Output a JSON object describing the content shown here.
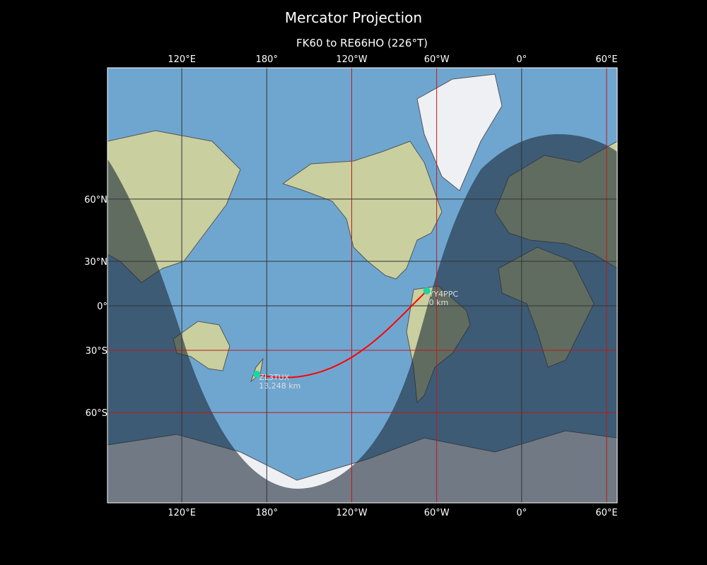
{
  "title": "Mercator Projection",
  "subtitle": "FK60 to RE66HO (226°T)",
  "map": {
    "projection": "mercator",
    "central_longitude_deg": -112.5,
    "lon_ticks": [
      {
        "lon": 120,
        "label": "120°E"
      },
      {
        "lon": 180,
        "label": "180°"
      },
      {
        "lon": -120,
        "label": "120°W"
      },
      {
        "lon": -60,
        "label": "60°W"
      },
      {
        "lon": 0,
        "label": "0°"
      },
      {
        "lon": 60,
        "label": "60°E"
      }
    ],
    "lat_ticks": [
      {
        "lat": 60,
        "label": "60°N"
      },
      {
        "lat": 30,
        "label": "30°N"
      },
      {
        "lat": 0,
        "label": "0°"
      },
      {
        "lat": -30,
        "label": "30°S"
      },
      {
        "lat": -60,
        "label": "60°S"
      }
    ],
    "colors": {
      "ocean": "#6fa6d0",
      "land": "#c9cf9e",
      "ice": "#eef0f4",
      "night": "#1c2a38",
      "path": "#ff0000",
      "marker": "#1ad6a0",
      "grid_red": "#c01818",
      "grid_dark": "#333333"
    }
  },
  "stations": [
    {
      "call": "YY4PPC",
      "distance": "0 km",
      "lon": -67,
      "lat": 10.5
    },
    {
      "call": "ZL3TUX",
      "distance": "13,248 km",
      "lon": 173,
      "lat": -43.5
    }
  ]
}
